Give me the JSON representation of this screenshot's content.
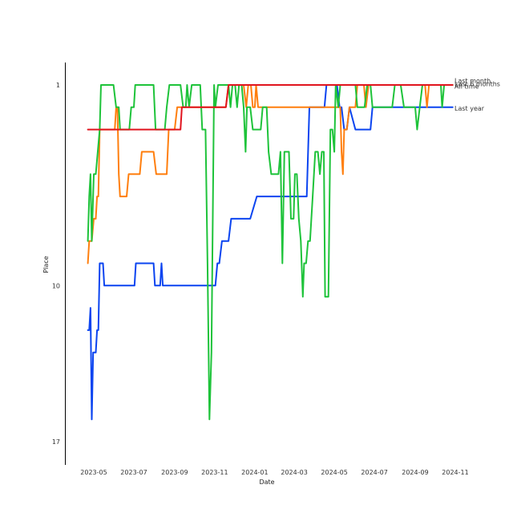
{
  "chart_data": {
    "type": "line",
    "xlabel": "Date",
    "ylabel": "Place",
    "x_ticks": [
      "2023-05",
      "2023-07",
      "2023-09",
      "2023-11",
      "2024-01",
      "2024-03",
      "2024-05",
      "2024-07",
      "2024-09",
      "2024-11"
    ],
    "y_ticks": [
      1,
      10,
      17
    ],
    "ylim": [
      1,
      17
    ],
    "y_inverted": true,
    "xlim": [
      "2023-04-01",
      "2024-11-05"
    ],
    "grid": false,
    "series": [
      {
        "name": "All time",
        "color": "#0b44f0",
        "points": [
          [
            "2023-04-22",
            12
          ],
          [
            "2023-04-24",
            12
          ],
          [
            "2023-04-26",
            11
          ],
          [
            "2023-04-28",
            16
          ],
          [
            "2023-04-30",
            13
          ],
          [
            "2023-05-01",
            13
          ],
          [
            "2023-05-04",
            13
          ],
          [
            "2023-05-06",
            12
          ],
          [
            "2023-05-08",
            12
          ],
          [
            "2023-05-10",
            9
          ],
          [
            "2023-05-13",
            9
          ],
          [
            "2023-05-15",
            9
          ],
          [
            "2023-05-17",
            10
          ],
          [
            "2023-05-20",
            10
          ],
          [
            "2023-05-28",
            10
          ],
          [
            "2023-06-15",
            10
          ],
          [
            "2023-07-02",
            10
          ],
          [
            "2023-07-04",
            9
          ],
          [
            "2023-07-10",
            9
          ],
          [
            "2023-07-20",
            9
          ],
          [
            "2023-07-31",
            9
          ],
          [
            "2023-08-02",
            10
          ],
          [
            "2023-08-10",
            10
          ],
          [
            "2023-08-12",
            9
          ],
          [
            "2023-08-14",
            10
          ],
          [
            "2023-08-20",
            10
          ],
          [
            "2023-09-15",
            10
          ],
          [
            "2023-10-10",
            10
          ],
          [
            "2023-11-02",
            10
          ],
          [
            "2023-11-05",
            9
          ],
          [
            "2023-11-08",
            9
          ],
          [
            "2023-11-12",
            8
          ],
          [
            "2023-11-22",
            8
          ],
          [
            "2023-11-26",
            7
          ],
          [
            "2023-12-10",
            7
          ],
          [
            "2023-12-25",
            7
          ],
          [
            "2024-01-04",
            6
          ],
          [
            "2024-01-20",
            6
          ],
          [
            "2024-02-15",
            6
          ],
          [
            "2024-03-10",
            6
          ],
          [
            "2024-03-20",
            6
          ],
          [
            "2024-03-24",
            2
          ],
          [
            "2024-04-10",
            2
          ],
          [
            "2024-04-16",
            2
          ],
          [
            "2024-04-19",
            1
          ],
          [
            "2024-05-01",
            1
          ],
          [
            "2024-05-05",
            1
          ],
          [
            "2024-05-09",
            2
          ],
          [
            "2024-05-12",
            2
          ],
          [
            "2024-05-16",
            3
          ],
          [
            "2024-05-20",
            3
          ],
          [
            "2024-05-24",
            2
          ],
          [
            "2024-06-02",
            3
          ],
          [
            "2024-06-15",
            3
          ],
          [
            "2024-06-25",
            3
          ],
          [
            "2024-06-28",
            2
          ],
          [
            "2024-07-15",
            2
          ],
          [
            "2024-08-15",
            2
          ],
          [
            "2024-09-15",
            2
          ],
          [
            "2024-10-10",
            2
          ],
          [
            "2024-10-28",
            2
          ]
        ]
      },
      {
        "name": "Last year",
        "color": "#ff7f0e",
        "points": [
          [
            "2023-04-22",
            9
          ],
          [
            "2023-04-24",
            8
          ],
          [
            "2023-04-28",
            8
          ],
          [
            "2023-05-01",
            7
          ],
          [
            "2023-05-04",
            7
          ],
          [
            "2023-05-06",
            6
          ],
          [
            "2023-05-08",
            6
          ],
          [
            "2023-05-10",
            3
          ],
          [
            "2023-05-15",
            3
          ],
          [
            "2023-05-25",
            3
          ],
          [
            "2023-06-02",
            3
          ],
          [
            "2023-06-04",
            2
          ],
          [
            "2023-06-06",
            2
          ],
          [
            "2023-06-08",
            5
          ],
          [
            "2023-06-10",
            6
          ],
          [
            "2023-06-20",
            6
          ],
          [
            "2023-06-23",
            5
          ],
          [
            "2023-07-05",
            5
          ],
          [
            "2023-07-10",
            5
          ],
          [
            "2023-07-13",
            4
          ],
          [
            "2023-07-25",
            4
          ],
          [
            "2023-07-31",
            4
          ],
          [
            "2023-08-04",
            5
          ],
          [
            "2023-08-15",
            5
          ],
          [
            "2023-08-20",
            5
          ],
          [
            "2023-08-23",
            3
          ],
          [
            "2023-09-01",
            3
          ],
          [
            "2023-09-05",
            2
          ],
          [
            "2023-09-20",
            2
          ],
          [
            "2023-10-15",
            2
          ],
          [
            "2023-11-10",
            2
          ],
          [
            "2023-11-18",
            2
          ],
          [
            "2023-11-22",
            1
          ],
          [
            "2023-12-10",
            1
          ],
          [
            "2023-12-15",
            1
          ],
          [
            "2023-12-19",
            2
          ],
          [
            "2023-12-22",
            1
          ],
          [
            "2023-12-26",
            1
          ],
          [
            "2023-12-29",
            2
          ],
          [
            "2024-01-01",
            2
          ],
          [
            "2024-01-03",
            1
          ],
          [
            "2024-01-06",
            2
          ],
          [
            "2024-01-20",
            2
          ],
          [
            "2024-02-15",
            2
          ],
          [
            "2024-03-15",
            2
          ],
          [
            "2024-04-10",
            2
          ],
          [
            "2024-04-25",
            2
          ],
          [
            "2024-05-01",
            2
          ],
          [
            "2024-05-03",
            2
          ],
          [
            "2024-05-06",
            2
          ],
          [
            "2024-05-10",
            2
          ],
          [
            "2024-05-12",
            4
          ],
          [
            "2024-05-14",
            5
          ],
          [
            "2024-05-16",
            3
          ],
          [
            "2024-05-20",
            3
          ],
          [
            "2024-05-24",
            2
          ],
          [
            "2024-05-30",
            2
          ],
          [
            "2024-06-02",
            2
          ],
          [
            "2024-06-05",
            1
          ],
          [
            "2024-06-15",
            1
          ],
          [
            "2024-06-18",
            2
          ],
          [
            "2024-06-22",
            1
          ],
          [
            "2024-07-01",
            1
          ],
          [
            "2024-07-15",
            1
          ],
          [
            "2024-08-15",
            1
          ],
          [
            "2024-09-10",
            1
          ],
          [
            "2024-09-16",
            1
          ],
          [
            "2024-09-19",
            2
          ],
          [
            "2024-09-22",
            1
          ],
          [
            "2024-10-15",
            1
          ],
          [
            "2024-10-28",
            1
          ]
        ]
      },
      {
        "name": "Last 6 months",
        "color": "#1ec33a",
        "points": [
          [
            "2023-04-22",
            8
          ],
          [
            "2023-04-24",
            6
          ],
          [
            "2023-04-26",
            5
          ],
          [
            "2023-04-28",
            8
          ],
          [
            "2023-05-01",
            5
          ],
          [
            "2023-05-04",
            5
          ],
          [
            "2023-05-10",
            3
          ],
          [
            "2023-05-12",
            1
          ],
          [
            "2023-05-20",
            1
          ],
          [
            "2023-05-31",
            1
          ],
          [
            "2023-06-04",
            2
          ],
          [
            "2023-06-08",
            2
          ],
          [
            "2023-06-10",
            3
          ],
          [
            "2023-06-20",
            3
          ],
          [
            "2023-06-24",
            3
          ],
          [
            "2023-06-27",
            2
          ],
          [
            "2023-07-01",
            2
          ],
          [
            "2023-07-03",
            1
          ],
          [
            "2023-07-15",
            1
          ],
          [
            "2023-07-31",
            1
          ],
          [
            "2023-08-03",
            3
          ],
          [
            "2023-08-10",
            3
          ],
          [
            "2023-08-17",
            3
          ],
          [
            "2023-08-20",
            2
          ],
          [
            "2023-08-24",
            1
          ],
          [
            "2023-09-05",
            1
          ],
          [
            "2023-09-10",
            1
          ],
          [
            "2023-09-14",
            2
          ],
          [
            "2023-09-18",
            2
          ],
          [
            "2023-09-20",
            1
          ],
          [
            "2023-09-23",
            2
          ],
          [
            "2023-09-27",
            1
          ],
          [
            "2023-10-05",
            1
          ],
          [
            "2023-10-10",
            1
          ],
          [
            "2023-10-13",
            3
          ],
          [
            "2023-10-18",
            3
          ],
          [
            "2023-10-21",
            9
          ],
          [
            "2023-10-24",
            16
          ],
          [
            "2023-10-27",
            13
          ],
          [
            "2023-10-31",
            1
          ],
          [
            "2023-11-02",
            2
          ],
          [
            "2023-11-06",
            1
          ],
          [
            "2023-11-15",
            1
          ],
          [
            "2023-11-22",
            1
          ],
          [
            "2023-11-25",
            2
          ],
          [
            "2023-11-28",
            1
          ],
          [
            "2023-12-02",
            1
          ],
          [
            "2023-12-05",
            2
          ],
          [
            "2023-12-08",
            1
          ],
          [
            "2023-12-12",
            1
          ],
          [
            "2023-12-15",
            2
          ],
          [
            "2023-12-18",
            4
          ],
          [
            "2023-12-20",
            2
          ],
          [
            "2023-12-25",
            2
          ],
          [
            "2023-12-29",
            3
          ],
          [
            "2024-01-01",
            3
          ],
          [
            "2024-01-10",
            3
          ],
          [
            "2024-01-13",
            2
          ],
          [
            "2024-01-19",
            2
          ],
          [
            "2024-01-22",
            4
          ],
          [
            "2024-01-26",
            5
          ],
          [
            "2024-02-01",
            5
          ],
          [
            "2024-02-06",
            5
          ],
          [
            "2024-02-09",
            4
          ],
          [
            "2024-02-12",
            9
          ],
          [
            "2024-02-15",
            4
          ],
          [
            "2024-02-18",
            4
          ],
          [
            "2024-02-22",
            4
          ],
          [
            "2024-02-25",
            7
          ],
          [
            "2024-02-29",
            7
          ],
          [
            "2024-03-02",
            5
          ],
          [
            "2024-03-05",
            5
          ],
          [
            "2024-03-08",
            7
          ],
          [
            "2024-03-11",
            8
          ],
          [
            "2024-03-14",
            10.5
          ],
          [
            "2024-03-16",
            9
          ],
          [
            "2024-03-19",
            9
          ],
          [
            "2024-03-22",
            8
          ],
          [
            "2024-03-25",
            8
          ],
          [
            "2024-03-29",
            6
          ],
          [
            "2024-04-02",
            4
          ],
          [
            "2024-04-06",
            4
          ],
          [
            "2024-04-09",
            5
          ],
          [
            "2024-04-12",
            4
          ],
          [
            "2024-04-15",
            4
          ],
          [
            "2024-04-17",
            10.5
          ],
          [
            "2024-04-20",
            10.5
          ],
          [
            "2024-04-22",
            10.5
          ],
          [
            "2024-04-25",
            3
          ],
          [
            "2024-04-28",
            3
          ],
          [
            "2024-05-01",
            4
          ],
          [
            "2024-05-03",
            1
          ],
          [
            "2024-05-07",
            2
          ],
          [
            "2024-05-10",
            1
          ],
          [
            "2024-05-20",
            1
          ],
          [
            "2024-06-02",
            1
          ],
          [
            "2024-06-05",
            2
          ],
          [
            "2024-06-08",
            2
          ],
          [
            "2024-06-12",
            2
          ],
          [
            "2024-06-16",
            2
          ],
          [
            "2024-06-20",
            1
          ],
          [
            "2024-06-25",
            1
          ],
          [
            "2024-06-28",
            2
          ],
          [
            "2024-07-05",
            2
          ],
          [
            "2024-07-15",
            2
          ],
          [
            "2024-07-28",
            2
          ],
          [
            "2024-08-01",
            1
          ],
          [
            "2024-08-10",
            1
          ],
          [
            "2024-08-15",
            2
          ],
          [
            "2024-08-20",
            2
          ],
          [
            "2024-08-25",
            2
          ],
          [
            "2024-09-01",
            2
          ],
          [
            "2024-09-04",
            3
          ],
          [
            "2024-09-08",
            2
          ],
          [
            "2024-09-12",
            1
          ],
          [
            "2024-09-20",
            1
          ],
          [
            "2024-10-01",
            1
          ],
          [
            "2024-10-10",
            1
          ],
          [
            "2024-10-12",
            2
          ],
          [
            "2024-10-15",
            1
          ],
          [
            "2024-10-28",
            1
          ]
        ]
      },
      {
        "name": "Last month",
        "color": "#e0141e",
        "points": [
          [
            "2023-04-22",
            3
          ],
          [
            "2023-05-15",
            3
          ],
          [
            "2023-06-15",
            3
          ],
          [
            "2023-07-15",
            3
          ],
          [
            "2023-08-15",
            3
          ],
          [
            "2023-09-01",
            3
          ],
          [
            "2023-09-10",
            3
          ],
          [
            "2023-09-12",
            2
          ],
          [
            "2023-10-15",
            2
          ],
          [
            "2023-11-15",
            2
          ],
          [
            "2023-11-18",
            2
          ],
          [
            "2023-11-22",
            1
          ],
          [
            "2023-12-15",
            1
          ],
          [
            "2024-02-15",
            1
          ],
          [
            "2024-05-15",
            1
          ],
          [
            "2024-08-15",
            1
          ],
          [
            "2024-10-28",
            1
          ]
        ]
      }
    ],
    "end_labels": [
      {
        "text": "Last month",
        "y": 0.8,
        "color": "#333333"
      },
      {
        "text": "Last 6 months",
        "y": 0.95,
        "color": "#333333"
      },
      {
        "text": "All time",
        "y": 1.05,
        "color": "#333333"
      },
      {
        "text": "Last year",
        "y": 2.05,
        "color": "#333333"
      }
    ]
  }
}
